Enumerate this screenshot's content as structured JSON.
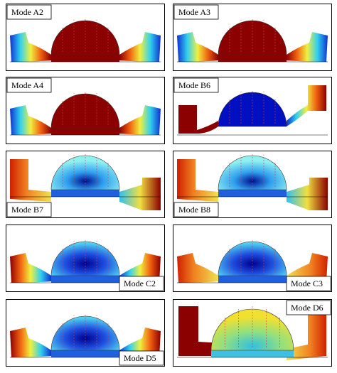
{
  "panels": [
    {
      "label": "Mode A2"
    },
    {
      "label": "Mode A3"
    },
    {
      "label": "Mode A4"
    },
    {
      "label": "Mode B6"
    },
    {
      "label": "Mode B7"
    },
    {
      "label": "Mode B8"
    },
    {
      "label": "Mode C2"
    },
    {
      "label": "Mode C3"
    },
    {
      "label": "Mode D5"
    },
    {
      "label": "Mode D6"
    }
  ]
}
